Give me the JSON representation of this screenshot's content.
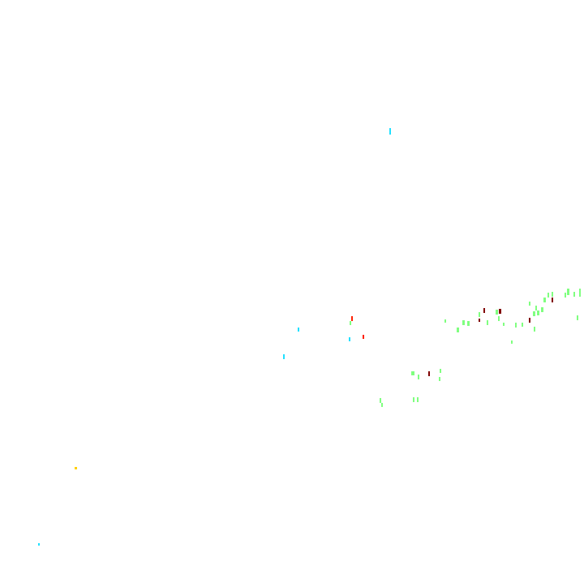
{
  "background_color": "#ffffff",
  "colors": {
    "green": "#80ff80",
    "dark_red": "#800000",
    "red": "#ff2000",
    "cyan": "#20e0ff",
    "yellow": "#ffd000"
  }
}
